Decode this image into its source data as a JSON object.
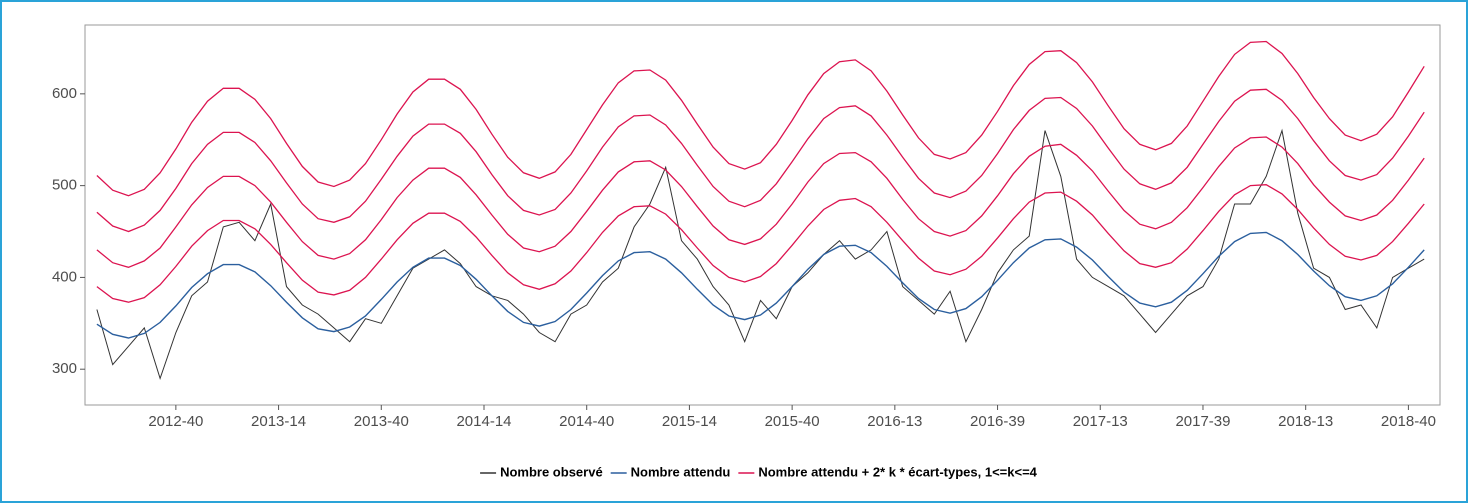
{
  "chart_data": {
    "type": "line",
    "x": [
      0,
      4,
      8,
      12,
      16,
      20,
      24,
      28,
      32,
      36,
      40,
      44,
      48,
      52,
      56,
      60,
      64,
      68,
      72,
      76,
      80,
      84,
      88,
      92,
      96,
      100,
      104,
      108,
      112,
      116,
      120,
      124,
      128,
      132,
      136,
      140,
      144,
      148,
      152,
      156,
      160,
      164,
      168,
      172,
      176,
      180,
      184,
      188,
      192,
      196,
      200,
      204,
      208,
      212,
      216,
      220,
      224,
      228,
      232,
      236,
      240,
      244,
      248,
      252,
      256,
      260,
      264,
      268,
      272,
      276,
      280,
      284,
      288,
      292,
      296,
      300,
      304,
      308,
      312,
      316,
      320,
      324,
      328,
      332,
      336
    ],
    "xlim": [
      -3,
      340
    ],
    "xticks": [
      {
        "value": 20,
        "label": "2012-40"
      },
      {
        "value": 46,
        "label": "2013-14"
      },
      {
        "value": 72,
        "label": "2013-40"
      },
      {
        "value": 98,
        "label": "2014-14"
      },
      {
        "value": 124,
        "label": "2014-40"
      },
      {
        "value": 150,
        "label": "2015-14"
      },
      {
        "value": 176,
        "label": "2015-40"
      },
      {
        "value": 202,
        "label": "2016-13"
      },
      {
        "value": 228,
        "label": "2016-39"
      },
      {
        "value": 254,
        "label": "2017-13"
      },
      {
        "value": 280,
        "label": "2017-39"
      },
      {
        "value": 306,
        "label": "2018-13"
      },
      {
        "value": 332,
        "label": "2018-40"
      }
    ],
    "ylim": [
      261,
      675
    ],
    "yticks": [
      300,
      400,
      500,
      600
    ],
    "grid": false,
    "legend": "bottom",
    "series": [
      {
        "name": "Nombre observé",
        "color": "#333333",
        "values": [
          365,
          305,
          325,
          345,
          290,
          340,
          380,
          395,
          455,
          460,
          440,
          480,
          390,
          370,
          360,
          345,
          330,
          355,
          350,
          380,
          410,
          420,
          430,
          415,
          390,
          380,
          375,
          360,
          340,
          330,
          360,
          370,
          395,
          410,
          455,
          480,
          520,
          440,
          420,
          390,
          370,
          330,
          375,
          355,
          390,
          405,
          425,
          440,
          420,
          430,
          450,
          390,
          375,
          360,
          385,
          330,
          365,
          405,
          430,
          445,
          560,
          510,
          420,
          400,
          390,
          380,
          360,
          340,
          360,
          380,
          390,
          420,
          480,
          480,
          510,
          560,
          470,
          410,
          400,
          365,
          370,
          345,
          400,
          410,
          420
        ]
      },
      {
        "name": "Nombre attendu",
        "color": "#2b5f9e",
        "values": [
          349,
          338,
          334,
          339,
          351,
          369,
          389,
          404,
          414,
          414,
          406,
          391,
          373,
          356,
          344,
          341,
          346,
          358,
          376,
          395,
          411,
          421,
          421,
          413,
          398,
          380,
          363,
          351,
          347,
          352,
          365,
          383,
          402,
          418,
          427,
          428,
          420,
          405,
          387,
          370,
          358,
          354,
          359,
          372,
          390,
          409,
          425,
          434,
          435,
          427,
          412,
          394,
          377,
          365,
          361,
          366,
          379,
          397,
          416,
          432,
          441,
          442,
          433,
          419,
          401,
          384,
          372,
          368,
          373,
          386,
          404,
          423,
          439,
          448,
          449,
          440,
          425,
          407,
          391,
          379,
          375,
          380,
          393,
          411,
          430
        ]
      },
      {
        "name": "Nombre attendu + 2* k * écart-types, 1<=k<=4",
        "color": "#dc1450",
        "lines": [
          [
            390,
            377,
            373,
            378,
            392,
            412,
            434,
            451,
            462,
            462,
            453,
            436,
            416,
            397,
            384,
            381,
            386,
            400,
            420,
            441,
            459,
            470,
            470,
            461,
            444,
            424,
            405,
            392,
            387,
            393,
            407,
            427,
            449,
            467,
            477,
            478,
            469,
            452,
            432,
            413,
            400,
            395,
            401,
            415,
            435,
            456,
            474,
            484,
            486,
            477,
            460,
            440,
            421,
            407,
            403,
            409,
            423,
            443,
            464,
            482,
            492,
            493,
            483,
            468,
            448,
            429,
            415,
            411,
            416,
            431,
            451,
            472,
            490,
            500,
            501,
            491,
            474,
            454,
            436,
            423,
            419,
            424,
            439,
            459,
            480
          ],
          [
            430,
            416,
            411,
            418,
            432,
            455,
            479,
            498,
            510,
            510,
            500,
            482,
            460,
            439,
            424,
            420,
            426,
            441,
            463,
            487,
            506,
            519,
            519,
            509,
            490,
            468,
            447,
            432,
            428,
            434,
            450,
            472,
            495,
            515,
            526,
            527,
            517,
            499,
            477,
            456,
            441,
            436,
            442,
            458,
            480,
            504,
            524,
            535,
            536,
            526,
            508,
            485,
            464,
            450,
            445,
            451,
            467,
            489,
            513,
            532,
            543,
            545,
            533,
            516,
            494,
            473,
            458,
            453,
            460,
            476,
            498,
            521,
            541,
            552,
            553,
            542,
            524,
            501,
            482,
            467,
            462,
            468,
            484,
            506,
            530
          ],
          [
            471,
            456,
            450,
            457,
            473,
            497,
            524,
            545,
            558,
            558,
            547,
            527,
            503,
            480,
            464,
            460,
            466,
            483,
            507,
            532,
            554,
            567,
            567,
            557,
            537,
            512,
            489,
            473,
            468,
            474,
            492,
            516,
            542,
            564,
            576,
            577,
            566,
            546,
            522,
            499,
            483,
            477,
            484,
            502,
            526,
            551,
            573,
            585,
            587,
            576,
            555,
            531,
            508,
            492,
            487,
            494,
            511,
            535,
            561,
            582,
            595,
            596,
            584,
            565,
            541,
            518,
            502,
            496,
            503,
            520,
            545,
            570,
            592,
            604,
            605,
            593,
            573,
            549,
            527,
            511,
            506,
            512,
            530,
            554,
            580
          ],
          [
            511,
            495,
            489,
            496,
            514,
            540,
            569,
            592,
            606,
            606,
            594,
            573,
            546,
            521,
            504,
            499,
            506,
            524,
            550,
            578,
            602,
            616,
            616,
            605,
            583,
            556,
            531,
            514,
            508,
            515,
            534,
            561,
            588,
            612,
            625,
            626,
            615,
            593,
            567,
            542,
            524,
            518,
            525,
            545,
            571,
            599,
            622,
            635,
            637,
            625,
            603,
            577,
            552,
            534,
            529,
            536,
            555,
            581,
            609,
            632,
            646,
            647,
            634,
            613,
            587,
            562,
            545,
            539,
            546,
            565,
            592,
            619,
            643,
            656,
            657,
            644,
            622,
            596,
            573,
            555,
            549,
            556,
            575,
            602,
            630
          ]
        ]
      }
    ]
  }
}
